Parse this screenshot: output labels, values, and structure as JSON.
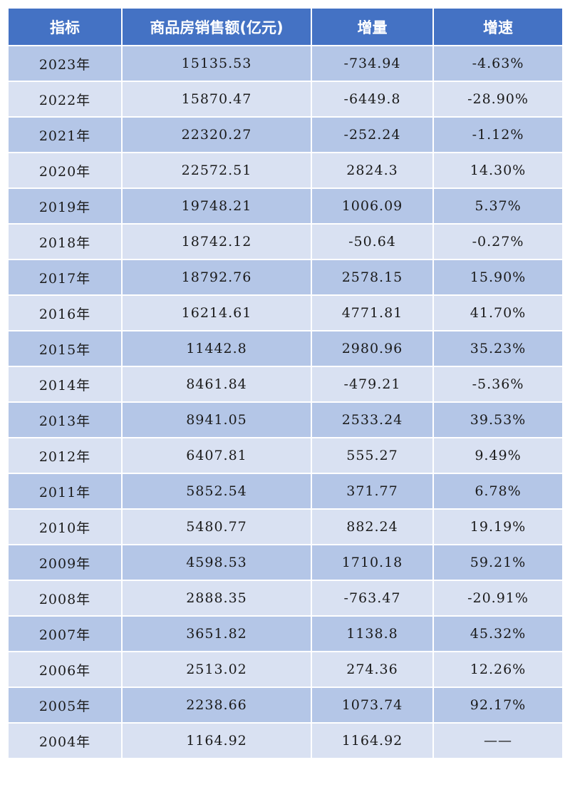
{
  "colors": {
    "header": "#4472C4",
    "row_dark": "#B4C6E7",
    "row_light": "#D9E1F2"
  },
  "chart_data": {
    "type": "table",
    "columns": [
      "指标",
      "商品房销售额(亿元)",
      "增量",
      "增速"
    ],
    "rows": [
      [
        "2023年",
        "15135.53",
        "-734.94",
        "-4.63%"
      ],
      [
        "2022年",
        "15870.47",
        "-6449.8",
        "-28.90%"
      ],
      [
        "2021年",
        "22320.27",
        "-252.24",
        "-1.12%"
      ],
      [
        "2020年",
        "22572.51",
        "2824.3",
        "14.30%"
      ],
      [
        "2019年",
        "19748.21",
        "1006.09",
        "5.37%"
      ],
      [
        "2018年",
        "18742.12",
        "-50.64",
        "-0.27%"
      ],
      [
        "2017年",
        "18792.76",
        "2578.15",
        "15.90%"
      ],
      [
        "2016年",
        "16214.61",
        "4771.81",
        "41.70%"
      ],
      [
        "2015年",
        "11442.8",
        "2980.96",
        "35.23%"
      ],
      [
        "2014年",
        "8461.84",
        "-479.21",
        "-5.36%"
      ],
      [
        "2013年",
        "8941.05",
        "2533.24",
        "39.53%"
      ],
      [
        "2012年",
        "6407.81",
        "555.27",
        "9.49%"
      ],
      [
        "2011年",
        "5852.54",
        "371.77",
        "6.78%"
      ],
      [
        "2010年",
        "5480.77",
        "882.24",
        "19.19%"
      ],
      [
        "2009年",
        "4598.53",
        "1710.18",
        "59.21%"
      ],
      [
        "2008年",
        "2888.35",
        "-763.47",
        "-20.91%"
      ],
      [
        "2007年",
        "3651.82",
        "1138.8",
        "45.32%"
      ],
      [
        "2006年",
        "2513.02",
        "274.36",
        "12.26%"
      ],
      [
        "2005年",
        "2238.66",
        "1073.74",
        "92.17%"
      ],
      [
        "2004年",
        "1164.92",
        "1164.92",
        "——"
      ]
    ]
  }
}
